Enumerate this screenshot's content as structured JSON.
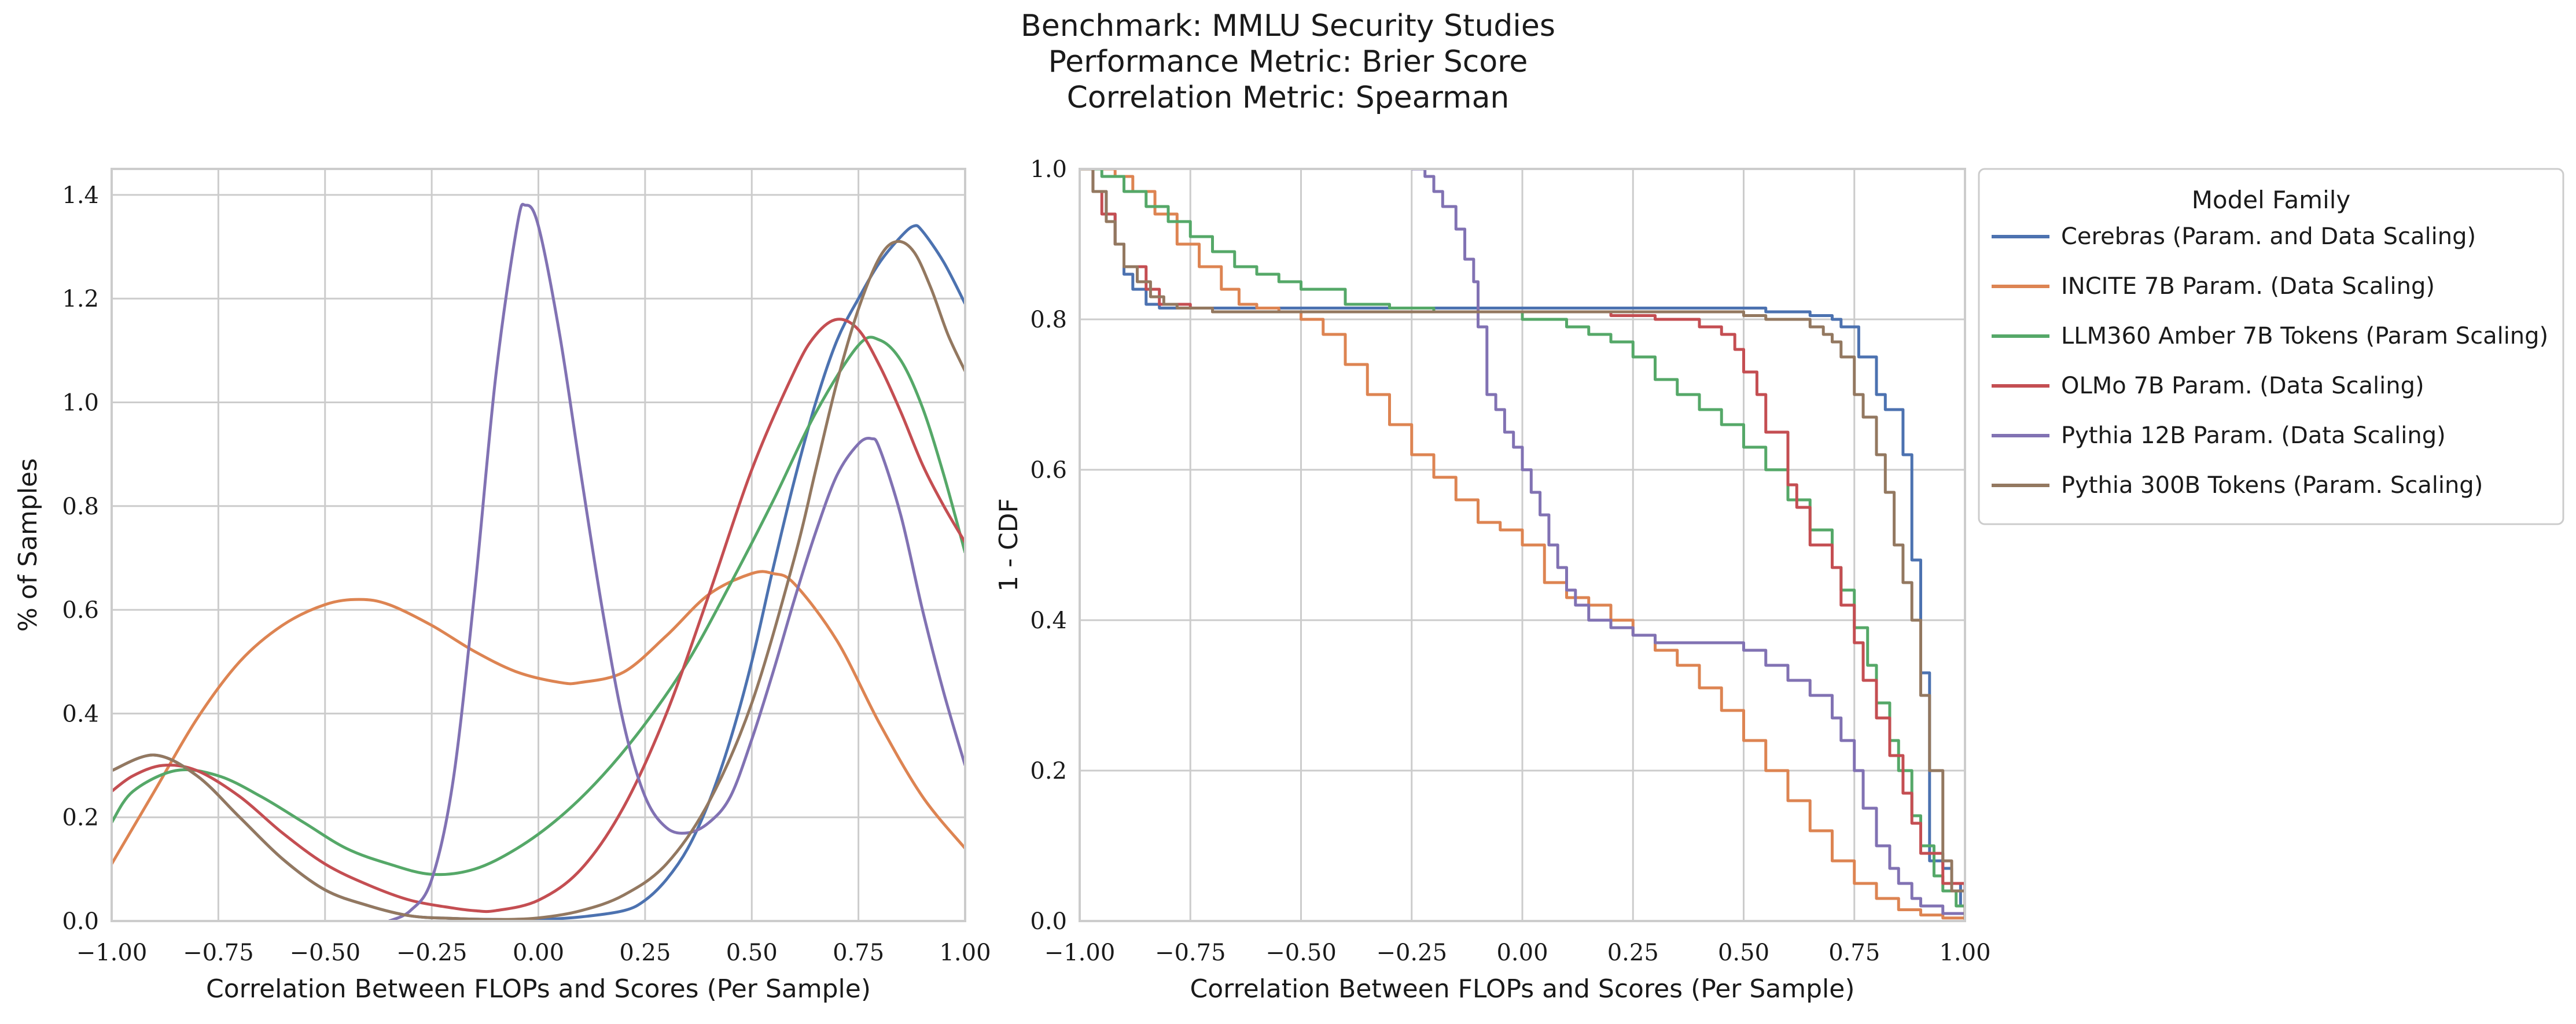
{
  "figure": {
    "suptitle_lines": [
      "Benchmark: MMLU Security Studies",
      "Performance Metric: Brier Score",
      "Correlation Metric: Spearman"
    ]
  },
  "chart_data": [
    {
      "type": "line",
      "subtype": "kde",
      "title": "",
      "xlabel": "Correlation Between FLOPs and Scores (Per Sample)",
      "ylabel": "% of Samples",
      "xlim": [
        -1.0,
        1.0
      ],
      "ylim": [
        0.0,
        1.45
      ],
      "xticks": [
        -1.0,
        -0.75,
        -0.5,
        -0.25,
        0.0,
        0.25,
        0.5,
        0.75,
        1.0
      ],
      "xtick_labels": [
        "−1.00",
        "−0.75",
        "−0.50",
        "−0.25",
        "0.00",
        "0.25",
        "0.50",
        "0.75",
        "1.00"
      ],
      "yticks": [
        0.0,
        0.2,
        0.4,
        0.6,
        0.8,
        1.0,
        1.2,
        1.4
      ],
      "ytick_labels": [
        "0.0",
        "0.2",
        "0.4",
        "0.6",
        "0.8",
        "1.0",
        "1.2",
        "1.4"
      ],
      "grid": true,
      "series": [
        {
          "name": "Cerebras (Param. and Data Scaling)",
          "color": "#4c72b0",
          "x": [
            -1.0,
            -0.9,
            -0.8,
            -0.7,
            -0.6,
            -0.5,
            -0.4,
            -0.3,
            -0.2,
            -0.1,
            0.0,
            0.1,
            0.2,
            0.25,
            0.3,
            0.35,
            0.4,
            0.45,
            0.5,
            0.55,
            0.6,
            0.65,
            0.7,
            0.75,
            0.8,
            0.85,
            0.88,
            0.9,
            0.95,
            1.0
          ],
          "y": [
            0.29,
            0.32,
            0.28,
            0.2,
            0.12,
            0.06,
            0.03,
            0.01,
            0.005,
            0.003,
            0.003,
            0.008,
            0.02,
            0.04,
            0.08,
            0.14,
            0.23,
            0.35,
            0.5,
            0.68,
            0.85,
            1.0,
            1.12,
            1.2,
            1.27,
            1.32,
            1.34,
            1.33,
            1.27,
            1.19
          ]
        },
        {
          "name": "INCITE 7B Param. (Data Scaling)",
          "color": "#dd8452",
          "x": [
            -1.0,
            -0.9,
            -0.8,
            -0.7,
            -0.6,
            -0.5,
            -0.42,
            -0.35,
            -0.25,
            -0.15,
            -0.05,
            0.05,
            0.1,
            0.2,
            0.3,
            0.4,
            0.5,
            0.55,
            0.6,
            0.7,
            0.8,
            0.9,
            1.0
          ],
          "y": [
            0.11,
            0.25,
            0.39,
            0.5,
            0.57,
            0.61,
            0.62,
            0.61,
            0.57,
            0.52,
            0.48,
            0.46,
            0.46,
            0.48,
            0.55,
            0.63,
            0.67,
            0.67,
            0.65,
            0.54,
            0.38,
            0.24,
            0.14
          ]
        },
        {
          "name": "LLM360 Amber 7B Tokens (Param Scaling)",
          "color": "#55a868",
          "x": [
            -1.0,
            -0.95,
            -0.85,
            -0.75,
            -0.65,
            -0.55,
            -0.45,
            -0.35,
            -0.25,
            -0.15,
            -0.05,
            0.05,
            0.15,
            0.25,
            0.35,
            0.45,
            0.55,
            0.65,
            0.75,
            0.8,
            0.85,
            0.9,
            0.95,
            1.0
          ],
          "y": [
            0.19,
            0.25,
            0.29,
            0.28,
            0.24,
            0.19,
            0.14,
            0.11,
            0.09,
            0.1,
            0.14,
            0.2,
            0.28,
            0.38,
            0.5,
            0.65,
            0.81,
            0.98,
            1.11,
            1.12,
            1.08,
            0.99,
            0.86,
            0.71
          ]
        },
        {
          "name": "OLMo 7B Param. (Data Scaling)",
          "color": "#c44e52",
          "x": [
            -1.0,
            -0.95,
            -0.88,
            -0.8,
            -0.7,
            -0.6,
            -0.5,
            -0.4,
            -0.3,
            -0.2,
            -0.15,
            -0.1,
            0.0,
            0.1,
            0.2,
            0.3,
            0.4,
            0.5,
            0.6,
            0.65,
            0.7,
            0.75,
            0.8,
            0.85,
            0.9,
            0.95,
            1.0
          ],
          "y": [
            0.25,
            0.28,
            0.3,
            0.29,
            0.24,
            0.17,
            0.11,
            0.07,
            0.04,
            0.025,
            0.02,
            0.02,
            0.04,
            0.1,
            0.22,
            0.4,
            0.63,
            0.87,
            1.06,
            1.13,
            1.16,
            1.14,
            1.07,
            0.98,
            0.88,
            0.8,
            0.73
          ]
        },
        {
          "name": "Pythia 12B Param. (Data Scaling)",
          "color": "#8172b3",
          "x": [
            -0.35,
            -0.3,
            -0.25,
            -0.2,
            -0.15,
            -0.1,
            -0.05,
            -0.03,
            0.0,
            0.05,
            0.1,
            0.15,
            0.2,
            0.25,
            0.3,
            0.35,
            0.4,
            0.45,
            0.5,
            0.55,
            0.6,
            0.65,
            0.7,
            0.75,
            0.78,
            0.8,
            0.85,
            0.9,
            0.95,
            1.0
          ],
          "y": [
            0.0,
            0.02,
            0.08,
            0.27,
            0.63,
            1.05,
            1.34,
            1.38,
            1.34,
            1.13,
            0.86,
            0.6,
            0.38,
            0.24,
            0.18,
            0.17,
            0.19,
            0.24,
            0.35,
            0.48,
            0.62,
            0.75,
            0.86,
            0.92,
            0.93,
            0.91,
            0.78,
            0.6,
            0.44,
            0.3
          ]
        },
        {
          "name": "Pythia 300B Tokens (Param. Scaling)",
          "color": "#937860",
          "x": [
            -1.0,
            -0.9,
            -0.8,
            -0.7,
            -0.6,
            -0.5,
            -0.4,
            -0.3,
            -0.2,
            -0.1,
            0.0,
            0.1,
            0.2,
            0.3,
            0.4,
            0.5,
            0.6,
            0.65,
            0.7,
            0.75,
            0.8,
            0.84,
            0.88,
            0.92,
            0.96,
            1.0
          ],
          "y": [
            0.29,
            0.32,
            0.28,
            0.2,
            0.12,
            0.06,
            0.03,
            0.01,
            0.005,
            0.003,
            0.006,
            0.02,
            0.05,
            0.11,
            0.23,
            0.42,
            0.7,
            0.87,
            1.04,
            1.18,
            1.28,
            1.31,
            1.29,
            1.22,
            1.13,
            1.06
          ]
        }
      ]
    },
    {
      "type": "line",
      "subtype": "step",
      "title": "",
      "xlabel": "Correlation Between FLOPs and Scores (Per Sample)",
      "ylabel": "1 - CDF",
      "xlim": [
        -1.0,
        1.0
      ],
      "ylim": [
        0.0,
        1.0
      ],
      "xticks": [
        -1.0,
        -0.75,
        -0.5,
        -0.25,
        0.0,
        0.25,
        0.5,
        0.75,
        1.0
      ],
      "xtick_labels": [
        "−1.00",
        "−0.75",
        "−0.50",
        "−0.25",
        "0.00",
        "0.25",
        "0.50",
        "0.75",
        "1.00"
      ],
      "yticks": [
        0.0,
        0.2,
        0.4,
        0.6,
        0.8,
        1.0
      ],
      "ytick_labels": [
        "0.0",
        "0.2",
        "0.4",
        "0.6",
        "0.8",
        "1.0"
      ],
      "grid": true,
      "legend": {
        "title": "Model Family",
        "placement": "outside-right-top"
      },
      "series": [
        {
          "name": "Cerebras (Param. and Data Scaling)",
          "color": "#4c72b0",
          "x": [
            -1.0,
            -0.97,
            -0.94,
            -0.92,
            -0.9,
            -0.88,
            -0.85,
            -0.82,
            0.0,
            0.55,
            0.65,
            0.7,
            0.72,
            0.76,
            0.8,
            0.82,
            0.86,
            0.88,
            0.9,
            0.92,
            0.95,
            0.97,
            0.99,
            1.0
          ],
          "y": [
            1.0,
            0.97,
            0.94,
            0.9,
            0.86,
            0.84,
            0.82,
            0.815,
            0.815,
            0.81,
            0.805,
            0.8,
            0.79,
            0.75,
            0.7,
            0.68,
            0.62,
            0.48,
            0.33,
            0.08,
            0.07,
            0.05,
            0.02,
            0.0
          ]
        },
        {
          "name": "INCITE 7B Param. (Data Scaling)",
          "color": "#dd8452",
          "x": [
            -1.0,
            -0.92,
            -0.88,
            -0.83,
            -0.78,
            -0.73,
            -0.68,
            -0.64,
            -0.6,
            -0.55,
            -0.5,
            -0.45,
            -0.4,
            -0.35,
            -0.3,
            -0.25,
            -0.2,
            -0.15,
            -0.1,
            -0.05,
            0.0,
            0.05,
            0.1,
            0.15,
            0.2,
            0.25,
            0.3,
            0.35,
            0.4,
            0.45,
            0.5,
            0.55,
            0.6,
            0.65,
            0.7,
            0.75,
            0.8,
            0.85,
            0.9,
            0.95,
            1.0
          ],
          "y": [
            1.0,
            0.99,
            0.97,
            0.94,
            0.9,
            0.87,
            0.84,
            0.82,
            0.815,
            0.81,
            0.8,
            0.78,
            0.74,
            0.7,
            0.66,
            0.62,
            0.59,
            0.56,
            0.53,
            0.52,
            0.5,
            0.45,
            0.43,
            0.42,
            0.4,
            0.38,
            0.36,
            0.34,
            0.31,
            0.28,
            0.24,
            0.2,
            0.16,
            0.12,
            0.08,
            0.05,
            0.03,
            0.015,
            0.008,
            0.004,
            0.0
          ]
        },
        {
          "name": "LLM360 Amber 7B Tokens (Param Scaling)",
          "color": "#55a868",
          "x": [
            -1.0,
            -0.95,
            -0.9,
            -0.85,
            -0.8,
            -0.75,
            -0.7,
            -0.65,
            -0.6,
            -0.55,
            -0.5,
            -0.4,
            -0.3,
            -0.2,
            -0.1,
            0.0,
            0.1,
            0.15,
            0.2,
            0.25,
            0.3,
            0.35,
            0.4,
            0.45,
            0.5,
            0.55,
            0.6,
            0.65,
            0.7,
            0.72,
            0.75,
            0.78,
            0.8,
            0.83,
            0.85,
            0.88,
            0.9,
            0.93,
            0.95,
            0.98,
            1.0
          ],
          "y": [
            1.0,
            0.99,
            0.97,
            0.95,
            0.93,
            0.91,
            0.89,
            0.87,
            0.86,
            0.85,
            0.84,
            0.82,
            0.815,
            0.81,
            0.81,
            0.8,
            0.79,
            0.78,
            0.77,
            0.75,
            0.72,
            0.7,
            0.68,
            0.66,
            0.63,
            0.6,
            0.56,
            0.52,
            0.47,
            0.44,
            0.39,
            0.34,
            0.29,
            0.24,
            0.2,
            0.14,
            0.1,
            0.06,
            0.04,
            0.02,
            0.0
          ]
        },
        {
          "name": "OLMo 7B Param. (Data Scaling)",
          "color": "#c44e52",
          "x": [
            -1.0,
            -0.97,
            -0.95,
            -0.92,
            -0.9,
            -0.85,
            -0.82,
            -0.8,
            -0.75,
            -0.7,
            -0.65,
            -0.6,
            0.0,
            0.1,
            0.2,
            0.3,
            0.35,
            0.4,
            0.45,
            0.48,
            0.5,
            0.53,
            0.55,
            0.6,
            0.62,
            0.65,
            0.7,
            0.72,
            0.75,
            0.77,
            0.8,
            0.83,
            0.86,
            0.88,
            0.9,
            0.95,
            1.0
          ],
          "y": [
            1.0,
            0.97,
            0.94,
            0.9,
            0.87,
            0.84,
            0.82,
            0.82,
            0.815,
            0.81,
            0.81,
            0.81,
            0.81,
            0.81,
            0.805,
            0.8,
            0.8,
            0.79,
            0.78,
            0.76,
            0.73,
            0.7,
            0.65,
            0.58,
            0.55,
            0.5,
            0.47,
            0.42,
            0.37,
            0.32,
            0.27,
            0.22,
            0.17,
            0.13,
            0.09,
            0.05,
            0.0
          ]
        },
        {
          "name": "Pythia 12B Param. (Data Scaling)",
          "color": "#8172b3",
          "x": [
            -0.25,
            -0.22,
            -0.2,
            -0.18,
            -0.15,
            -0.13,
            -0.11,
            -0.1,
            -0.08,
            -0.06,
            -0.04,
            -0.02,
            0.0,
            0.02,
            0.04,
            0.06,
            0.08,
            0.1,
            0.12,
            0.15,
            0.2,
            0.25,
            0.3,
            0.4,
            0.45,
            0.5,
            0.55,
            0.6,
            0.65,
            0.7,
            0.72,
            0.75,
            0.77,
            0.8,
            0.83,
            0.85,
            0.88,
            0.9,
            0.95,
            1.0
          ],
          "y": [
            1.0,
            0.99,
            0.97,
            0.95,
            0.92,
            0.88,
            0.85,
            0.79,
            0.7,
            0.68,
            0.65,
            0.63,
            0.6,
            0.57,
            0.54,
            0.5,
            0.47,
            0.44,
            0.42,
            0.4,
            0.39,
            0.38,
            0.37,
            0.37,
            0.37,
            0.36,
            0.34,
            0.32,
            0.3,
            0.27,
            0.24,
            0.2,
            0.15,
            0.1,
            0.07,
            0.05,
            0.03,
            0.02,
            0.01,
            0.0
          ]
        },
        {
          "name": "Pythia 300B Tokens (Param. Scaling)",
          "color": "#937860",
          "x": [
            -1.0,
            -0.97,
            -0.94,
            -0.92,
            -0.9,
            -0.87,
            -0.84,
            -0.81,
            -0.78,
            -0.7,
            -0.6,
            0.0,
            0.4,
            0.5,
            0.55,
            0.6,
            0.65,
            0.68,
            0.7,
            0.72,
            0.75,
            0.77,
            0.8,
            0.82,
            0.84,
            0.86,
            0.88,
            0.9,
            0.92,
            0.95,
            0.97,
            1.0
          ],
          "y": [
            1.0,
            0.97,
            0.93,
            0.9,
            0.87,
            0.85,
            0.83,
            0.82,
            0.815,
            0.81,
            0.81,
            0.81,
            0.81,
            0.805,
            0.8,
            0.8,
            0.79,
            0.78,
            0.77,
            0.75,
            0.7,
            0.67,
            0.62,
            0.57,
            0.5,
            0.45,
            0.4,
            0.3,
            0.2,
            0.08,
            0.04,
            0.0
          ]
        }
      ]
    }
  ]
}
